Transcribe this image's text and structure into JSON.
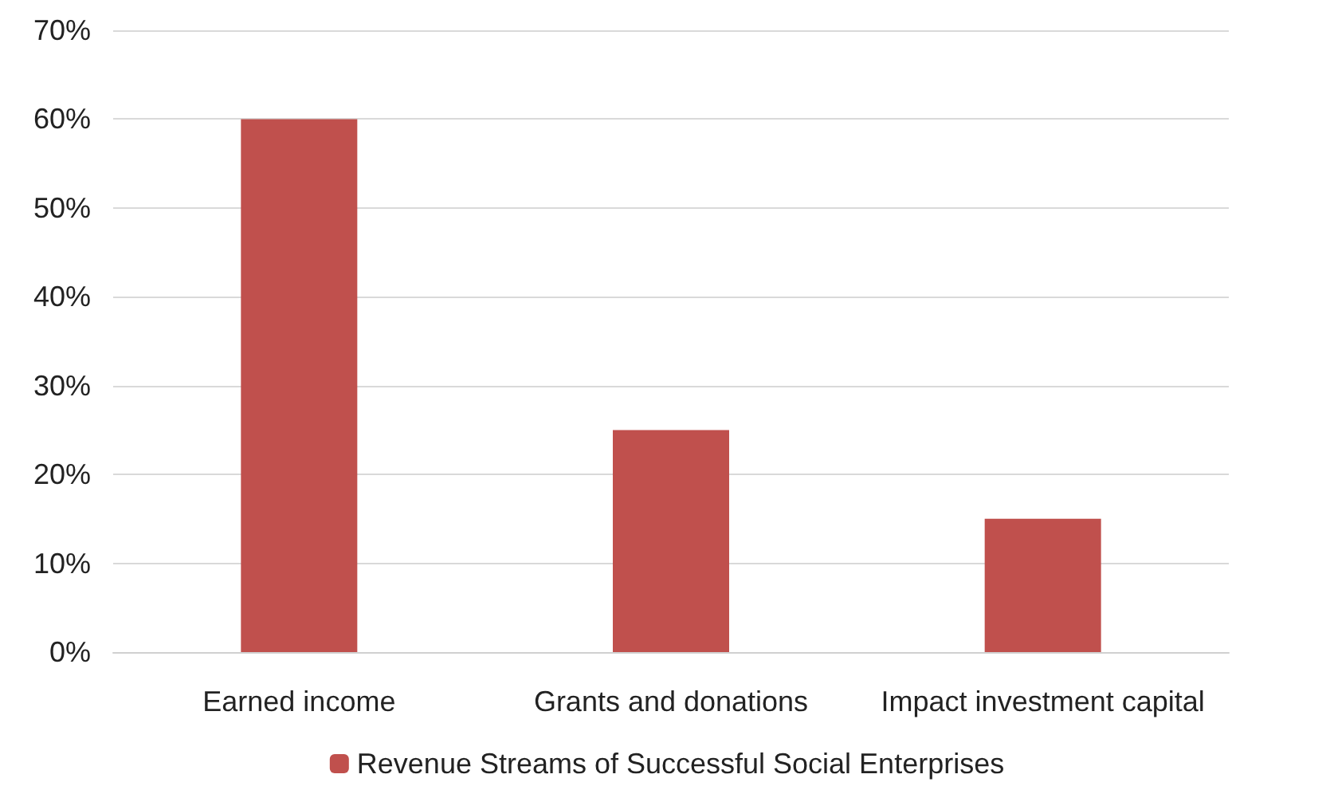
{
  "chart_data": {
    "type": "bar",
    "categories": [
      "Earned income",
      "Grants and donations",
      "Impact investment capital"
    ],
    "series": [
      {
        "name": "Revenue Streams of Successful Social Enterprises",
        "color": "#c0504d",
        "values": [
          60,
          25,
          15
        ]
      }
    ],
    "ylim": [
      0,
      70
    ],
    "yticks": [
      {
        "value": 0,
        "label": "0%"
      },
      {
        "value": 10,
        "label": "10%"
      },
      {
        "value": 20,
        "label": "20%"
      },
      {
        "value": 30,
        "label": "30%"
      },
      {
        "value": 40,
        "label": "40%"
      },
      {
        "value": 50,
        "label": "50%"
      },
      {
        "value": 60,
        "label": "60%"
      },
      {
        "value": 70,
        "label": "70%"
      }
    ],
    "grid": "y",
    "legend": "bottom"
  }
}
